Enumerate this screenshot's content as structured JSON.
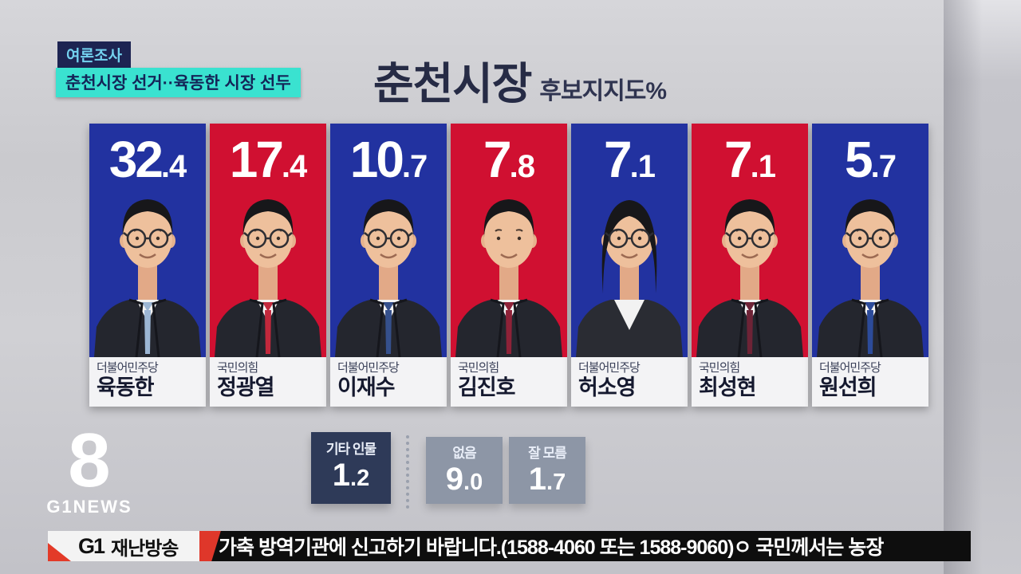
{
  "header": {
    "badge_small": "여론조사",
    "badge_headline": "춘천시장 선거··육동한 시장 선두",
    "title": "춘천시장",
    "subtitle": "후보지지도%"
  },
  "colors": {
    "democratic_blue": "#2232a0",
    "ppp_red": "#d01031",
    "badge_navy": "#1d2452",
    "badge_cyan": "#3ae2d0",
    "dark_stat_box": "#2e3a58",
    "gray_stat_box": "#8d96a6",
    "ticker_red": "#df372a"
  },
  "candidates": [
    {
      "value": "32.4",
      "party": "더불어민주당",
      "name": "육동한",
      "party_color": "#2232a0",
      "avatar": {
        "hair": "short",
        "glasses": true,
        "tie": "#9cb6d4"
      }
    },
    {
      "value": "17.4",
      "party": "국민의힘",
      "name": "정광열",
      "party_color": "#d01031",
      "avatar": {
        "hair": "short",
        "glasses": true,
        "tie": "#c2283c"
      }
    },
    {
      "value": "10.7",
      "party": "더불어민주당",
      "name": "이재수",
      "party_color": "#2232a0",
      "avatar": {
        "hair": "short",
        "glasses": true,
        "tie": "#35508c"
      }
    },
    {
      "value": "7.8",
      "party": "국민의힘",
      "name": "김진호",
      "party_color": "#d01031",
      "avatar": {
        "hair": "short",
        "glasses": false,
        "tie": "#8e2238"
      }
    },
    {
      "value": "7.1",
      "party": "더불어민주당",
      "name": "허소영",
      "party_color": "#2232a0",
      "avatar": {
        "hair": "bob",
        "glasses": true,
        "tie": null
      }
    },
    {
      "value": "7.1",
      "party": "국민의힘",
      "name": "최성현",
      "party_color": "#d01031",
      "avatar": {
        "hair": "short",
        "glasses": true,
        "tie": "#6e2336"
      }
    },
    {
      "value": "5.7",
      "party": "더불어민주당",
      "name": "원선희",
      "party_color": "#2232a0",
      "avatar": {
        "hair": "short",
        "glasses": true,
        "tie": "#2c4b9a"
      }
    }
  ],
  "stats": [
    {
      "label": "기타 인물",
      "value": "1.2"
    },
    {
      "label": "없음",
      "value": "9.0"
    },
    {
      "label": "잘 모름",
      "value": "1.7"
    }
  ],
  "branding": {
    "logo_eight": "8",
    "logo_text": "G1NEWS"
  },
  "ticker": {
    "station": "G1",
    "tag": "재난방송",
    "text": "가축 방역기관에 신고하기 바랍니다.(1588-4060 또는 1588-9060)ㅇ 국민께서는 농장"
  },
  "chart_data": {
    "type": "bar",
    "title": "춘천시장 후보지지도%",
    "unit": "%",
    "categories": [
      "육동한",
      "정광열",
      "이재수",
      "김진호",
      "허소영",
      "최성현",
      "원선희",
      "기타 인물",
      "없음",
      "잘 모름"
    ],
    "values": [
      32.4,
      17.4,
      10.7,
      7.8,
      7.1,
      7.1,
      5.7,
      1.2,
      9.0,
      1.7
    ],
    "parties": [
      "더불어민주당",
      "국민의힘",
      "더불어민주당",
      "국민의힘",
      "더불어민주당",
      "국민의힘",
      "더불어민주당",
      "",
      "",
      ""
    ],
    "ylim": [
      0,
      35
    ],
    "legend_position": "none",
    "grid": false
  }
}
